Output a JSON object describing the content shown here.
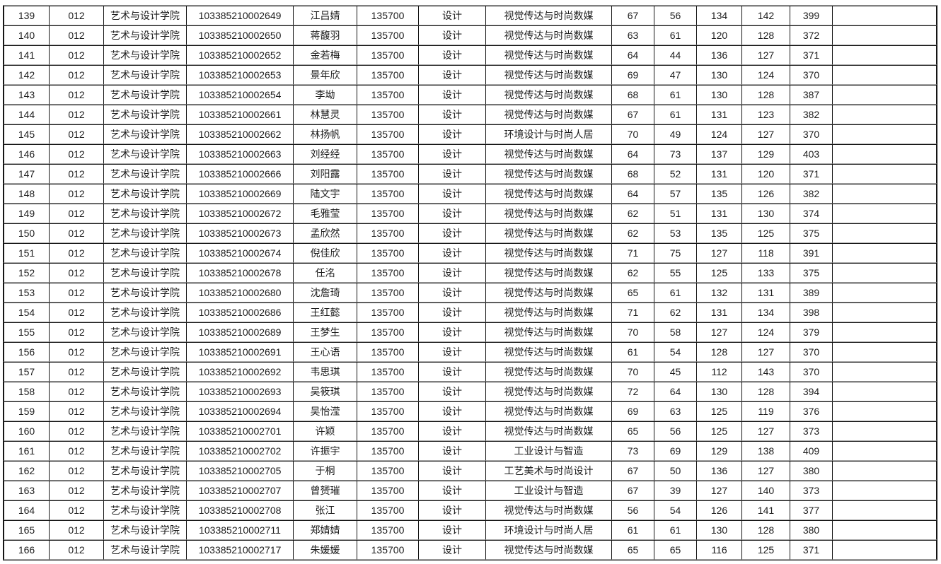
{
  "table": {
    "rows": [
      [
        "139",
        "012",
        "艺术与设计学院",
        "103385210002649",
        "江吕婧",
        "135700",
        "设计",
        "视觉传达与时尚数媒",
        "67",
        "56",
        "134",
        "142",
        "399",
        ""
      ],
      [
        "140",
        "012",
        "艺术与设计学院",
        "103385210002650",
        "蒋馥羽",
        "135700",
        "设计",
        "视觉传达与时尚数媒",
        "63",
        "61",
        "120",
        "128",
        "372",
        ""
      ],
      [
        "141",
        "012",
        "艺术与设计学院",
        "103385210002652",
        "金若梅",
        "135700",
        "设计",
        "视觉传达与时尚数媒",
        "64",
        "44",
        "136",
        "127",
        "371",
        ""
      ],
      [
        "142",
        "012",
        "艺术与设计学院",
        "103385210002653",
        "景年欣",
        "135700",
        "设计",
        "视觉传达与时尚数媒",
        "69",
        "47",
        "130",
        "124",
        "370",
        ""
      ],
      [
        "143",
        "012",
        "艺术与设计学院",
        "103385210002654",
        "李坳",
        "135700",
        "设计",
        "视觉传达与时尚数媒",
        "68",
        "61",
        "130",
        "128",
        "387",
        ""
      ],
      [
        "144",
        "012",
        "艺术与设计学院",
        "103385210002661",
        "林慧灵",
        "135700",
        "设计",
        "视觉传达与时尚数媒",
        "67",
        "61",
        "131",
        "123",
        "382",
        ""
      ],
      [
        "145",
        "012",
        "艺术与设计学院",
        "103385210002662",
        "林扬帆",
        "135700",
        "设计",
        "环境设计与时尚人居",
        "70",
        "49",
        "124",
        "127",
        "370",
        ""
      ],
      [
        "146",
        "012",
        "艺术与设计学院",
        "103385210002663",
        "刘经经",
        "135700",
        "设计",
        "视觉传达与时尚数媒",
        "64",
        "73",
        "137",
        "129",
        "403",
        ""
      ],
      [
        "147",
        "012",
        "艺术与设计学院",
        "103385210002666",
        "刘阳露",
        "135700",
        "设计",
        "视觉传达与时尚数媒",
        "68",
        "52",
        "131",
        "120",
        "371",
        ""
      ],
      [
        "148",
        "012",
        "艺术与设计学院",
        "103385210002669",
        "陆文宇",
        "135700",
        "设计",
        "视觉传达与时尚数媒",
        "64",
        "57",
        "135",
        "126",
        "382",
        ""
      ],
      [
        "149",
        "012",
        "艺术与设计学院",
        "103385210002672",
        "毛雅莹",
        "135700",
        "设计",
        "视觉传达与时尚数媒",
        "62",
        "51",
        "131",
        "130",
        "374",
        ""
      ],
      [
        "150",
        "012",
        "艺术与设计学院",
        "103385210002673",
        "孟欣然",
        "135700",
        "设计",
        "视觉传达与时尚数媒",
        "62",
        "53",
        "135",
        "125",
        "375",
        ""
      ],
      [
        "151",
        "012",
        "艺术与设计学院",
        "103385210002674",
        "倪佳欣",
        "135700",
        "设计",
        "视觉传达与时尚数媒",
        "71",
        "75",
        "127",
        "118",
        "391",
        ""
      ],
      [
        "152",
        "012",
        "艺术与设计学院",
        "103385210002678",
        "任洺",
        "135700",
        "设计",
        "视觉传达与时尚数媒",
        "62",
        "55",
        "125",
        "133",
        "375",
        ""
      ],
      [
        "153",
        "012",
        "艺术与设计学院",
        "103385210002680",
        "沈詹琦",
        "135700",
        "设计",
        "视觉传达与时尚数媒",
        "65",
        "61",
        "132",
        "131",
        "389",
        ""
      ],
      [
        "154",
        "012",
        "艺术与设计学院",
        "103385210002686",
        "王红懿",
        "135700",
        "设计",
        "视觉传达与时尚数媒",
        "71",
        "62",
        "131",
        "134",
        "398",
        ""
      ],
      [
        "155",
        "012",
        "艺术与设计学院",
        "103385210002689",
        "王梦生",
        "135700",
        "设计",
        "视觉传达与时尚数媒",
        "70",
        "58",
        "127",
        "124",
        "379",
        ""
      ],
      [
        "156",
        "012",
        "艺术与设计学院",
        "103385210002691",
        "王心语",
        "135700",
        "设计",
        "视觉传达与时尚数媒",
        "61",
        "54",
        "128",
        "127",
        "370",
        ""
      ],
      [
        "157",
        "012",
        "艺术与设计学院",
        "103385210002692",
        "韦思琪",
        "135700",
        "设计",
        "视觉传达与时尚数媒",
        "70",
        "45",
        "112",
        "143",
        "370",
        ""
      ],
      [
        "158",
        "012",
        "艺术与设计学院",
        "103385210002693",
        "吴筱琪",
        "135700",
        "设计",
        "视觉传达与时尚数媒",
        "72",
        "64",
        "130",
        "128",
        "394",
        ""
      ],
      [
        "159",
        "012",
        "艺术与设计学院",
        "103385210002694",
        "吴怡滢",
        "135700",
        "设计",
        "视觉传达与时尚数媒",
        "69",
        "63",
        "125",
        "119",
        "376",
        ""
      ],
      [
        "160",
        "012",
        "艺术与设计学院",
        "103385210002701",
        "许颖",
        "135700",
        "设计",
        "视觉传达与时尚数媒",
        "65",
        "56",
        "125",
        "127",
        "373",
        ""
      ],
      [
        "161",
        "012",
        "艺术与设计学院",
        "103385210002702",
        "许振宇",
        "135700",
        "设计",
        "工业设计与智造",
        "73",
        "69",
        "129",
        "138",
        "409",
        ""
      ],
      [
        "162",
        "012",
        "艺术与设计学院",
        "103385210002705",
        "于桐",
        "135700",
        "设计",
        "工艺美术与时尚设计",
        "67",
        "50",
        "136",
        "127",
        "380",
        ""
      ],
      [
        "163",
        "012",
        "艺术与设计学院",
        "103385210002707",
        "曾赟璀",
        "135700",
        "设计",
        "工业设计与智造",
        "67",
        "39",
        "127",
        "140",
        "373",
        ""
      ],
      [
        "164",
        "012",
        "艺术与设计学院",
        "103385210002708",
        "张江",
        "135700",
        "设计",
        "视觉传达与时尚数媒",
        "56",
        "54",
        "126",
        "141",
        "377",
        ""
      ],
      [
        "165",
        "012",
        "艺术与设计学院",
        "103385210002711",
        "郑婧婧",
        "135700",
        "设计",
        "环境设计与时尚人居",
        "61",
        "61",
        "130",
        "128",
        "380",
        ""
      ],
      [
        "166",
        "012",
        "艺术与设计学院",
        "103385210002717",
        "朱媛媛",
        "135700",
        "设计",
        "视觉传达与时尚数媒",
        "65",
        "65",
        "116",
        "125",
        "371",
        ""
      ]
    ]
  }
}
